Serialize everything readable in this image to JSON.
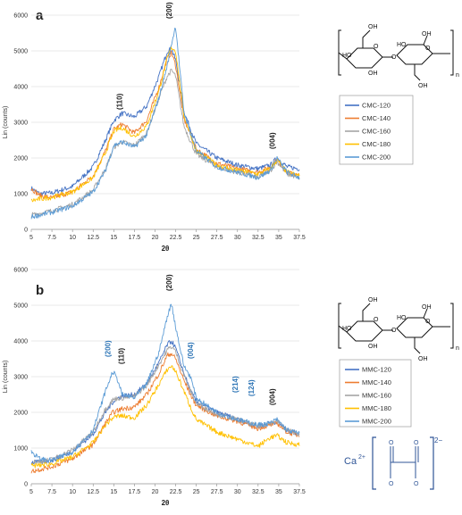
{
  "chart_data": [
    {
      "type": "line",
      "panel_letter": "a",
      "title": "",
      "xlabel": "2θ",
      "ylabel": "Lin (counts)",
      "xlim": [
        5,
        37.5
      ],
      "ylim": [
        0,
        6000
      ],
      "xticks": [
        "5",
        "7.5",
        "10",
        "12.5",
        "15",
        "17.5",
        "20",
        "22.5",
        "25",
        "27.5",
        "30",
        "32.5",
        "35",
        "37.5"
      ],
      "yticks": [
        "0",
        "1000",
        "2000",
        "3000",
        "4000",
        "5000",
        "6000"
      ],
      "grid": true,
      "legend": "right",
      "peak_labels": [
        {
          "text": "(110)",
          "x": 16.0,
          "y": 3350,
          "color": "#222222"
        },
        {
          "text": "(200)",
          "x": 22.0,
          "y": 5900,
          "color": "#222222"
        },
        {
          "text": "(004)",
          "x": 34.5,
          "y": 2250,
          "color": "#222222"
        }
      ],
      "x": [
        5,
        6,
        7.5,
        10,
        12.5,
        14,
        15,
        16,
        17.5,
        19,
        20.5,
        21.5,
        22,
        22.5,
        23.5,
        25,
        27.5,
        30,
        32.5,
        34,
        34.8,
        36,
        37.5
      ],
      "series": [
        {
          "name": "CMC-120",
          "color": "#4472C4",
          "values": [
            1150,
            1000,
            1020,
            1200,
            1750,
            2500,
            3050,
            3250,
            3150,
            3450,
            4300,
            5000,
            5050,
            4750,
            3300,
            2400,
            2000,
            1800,
            1700,
            1800,
            2000,
            1750,
            1700
          ]
        },
        {
          "name": "CMC-140",
          "color": "#ED7D31",
          "values": [
            1150,
            950,
            880,
            1050,
            1500,
            2200,
            2800,
            2950,
            2700,
            3050,
            4000,
            4800,
            4950,
            4600,
            3100,
            2250,
            1850,
            1700,
            1600,
            1750,
            1950,
            1600,
            1500
          ]
        },
        {
          "name": "CMC-160",
          "color": "#A5A5A5",
          "values": [
            400,
            450,
            520,
            700,
            1100,
            1700,
            2300,
            2450,
            2350,
            2700,
            3700,
            4300,
            4450,
            4300,
            2900,
            2100,
            1750,
            1600,
            1450,
            1650,
            1900,
            1550,
            1450
          ]
        },
        {
          "name": "CMC-180",
          "color": "#FFC000",
          "values": [
            800,
            850,
            900,
            1050,
            1450,
            2150,
            2750,
            2850,
            2600,
            2900,
            3900,
            4800,
            5100,
            5000,
            3200,
            2200,
            1800,
            1650,
            1550,
            1700,
            1950,
            1600,
            1500
          ]
        },
        {
          "name": "CMC-200",
          "color": "#5B9BD5",
          "values": [
            350,
            400,
            480,
            650,
            1050,
            1650,
            2350,
            2450,
            2300,
            2650,
            3700,
            4600,
            5200,
            5700,
            3300,
            2200,
            1750,
            1600,
            1450,
            1650,
            2000,
            1600,
            1450
          ]
        }
      ]
    },
    {
      "type": "line",
      "panel_letter": "b",
      "title": "",
      "xlabel": "2θ",
      "ylabel": "Lin (counts)",
      "xlim": [
        5,
        37.5
      ],
      "ylim": [
        0,
        6000
      ],
      "xticks": [
        "5",
        "7.5",
        "10",
        "12.5",
        "15",
        "17.5",
        "20",
        "22.5",
        "25",
        "27.5",
        "30",
        "32.5",
        "35",
        "37.5"
      ],
      "yticks": [
        "0",
        "1000",
        "2000",
        "3000",
        "4000",
        "5000",
        "6000"
      ],
      "grid": true,
      "legend": "right",
      "peak_labels": [
        {
          "text": "(200)",
          "x": 14.6,
          "y": 3550,
          "color": "#2E75B6"
        },
        {
          "text": "(110)",
          "x": 16.2,
          "y": 3350,
          "color": "#222222"
        },
        {
          "text": "(200)",
          "x": 22.0,
          "y": 5400,
          "color": "#222222"
        },
        {
          "text": "(004)",
          "x": 24.6,
          "y": 3500,
          "color": "#2E75B6"
        },
        {
          "text": "(214)",
          "x": 30.0,
          "y": 2550,
          "color": "#2E75B6"
        },
        {
          "text": "(124)",
          "x": 32.0,
          "y": 2450,
          "color": "#2E75B6"
        },
        {
          "text": "(004)",
          "x": 34.5,
          "y": 2200,
          "color": "#222222"
        }
      ],
      "x": [
        5,
        6,
        7.5,
        10,
        12.5,
        14,
        14.9,
        15.5,
        16,
        17.5,
        19,
        20.5,
        21.5,
        22,
        22.5,
        23.5,
        24.3,
        25,
        27.5,
        30,
        32.5,
        34,
        34.8,
        36,
        37.5
      ],
      "series": [
        {
          "name": "MMC-120",
          "color": "#4472C4",
          "values": [
            600,
            600,
            650,
            900,
            1400,
            2000,
            2300,
            2400,
            2450,
            2500,
            2800,
            3400,
            3900,
            4000,
            3800,
            3100,
            2600,
            2300,
            2000,
            1800,
            1600,
            1700,
            1750,
            1500,
            1400
          ]
        },
        {
          "name": "MMC-140",
          "color": "#ED7D31",
          "values": [
            350,
            400,
            480,
            700,
            1100,
            1700,
            2000,
            2050,
            2100,
            2150,
            2500,
            3100,
            3600,
            3650,
            3500,
            2900,
            2500,
            2200,
            1900,
            1750,
            1550,
            1650,
            1700,
            1450,
            1350
          ]
        },
        {
          "name": "MMC-160",
          "color": "#A5A5A5",
          "values": [
            600,
            620,
            680,
            950,
            1450,
            2100,
            2350,
            2400,
            2400,
            2450,
            2750,
            3350,
            3750,
            3850,
            3700,
            3050,
            2600,
            2250,
            1950,
            1800,
            1600,
            1700,
            1750,
            1500,
            1400
          ]
        },
        {
          "name": "MMC-180",
          "color": "#FFC000",
          "values": [
            500,
            520,
            560,
            750,
            1150,
            1650,
            1850,
            1900,
            1900,
            1850,
            2200,
            2800,
            3200,
            3300,
            3150,
            2600,
            2150,
            1800,
            1450,
            1250,
            1050,
            1300,
            1350,
            1150,
            1100
          ]
        },
        {
          "name": "MMC-200",
          "color": "#5B9BD5",
          "values": [
            900,
            700,
            650,
            900,
            1500,
            2600,
            3150,
            2900,
            2500,
            2400,
            2800,
            3700,
            4700,
            5050,
            4400,
            3300,
            3000,
            2400,
            2000,
            1800,
            1650,
            1700,
            1800,
            1500,
            1400
          ]
        }
      ]
    }
  ],
  "structures": {
    "subscript_n": "n",
    "oh_label": "OH",
    "ho_label": "HO",
    "o_label": "O",
    "calcium": "Ca",
    "calcium_charge": "2+",
    "oxalate_charge": "2−"
  }
}
